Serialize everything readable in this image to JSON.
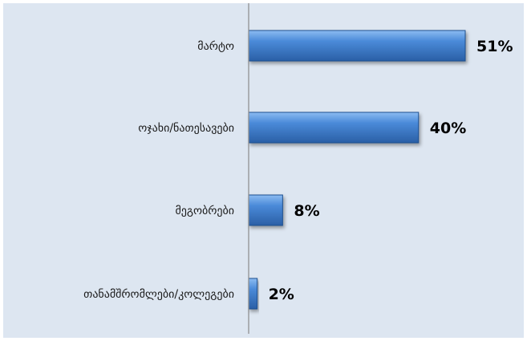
{
  "chart_data": {
    "type": "bar",
    "orientation": "horizontal",
    "categories": [
      "მარტო",
      "ოჯახი/ნათესავები",
      "მეგობრები",
      "თანამშრომლები/კოლეგები"
    ],
    "values": [
      51,
      40,
      8,
      2
    ],
    "data_labels": [
      "51%",
      "40%",
      "8%",
      "2%"
    ],
    "xlim": [
      0,
      60
    ],
    "grid": false,
    "legend": "none",
    "colors": {
      "background": "#dde6f1",
      "bar_light": "#7fb0ea",
      "bar_main": "#3f7fcf",
      "bar_dark": "#1f4f8f",
      "axis": "#8a8a8a"
    }
  }
}
